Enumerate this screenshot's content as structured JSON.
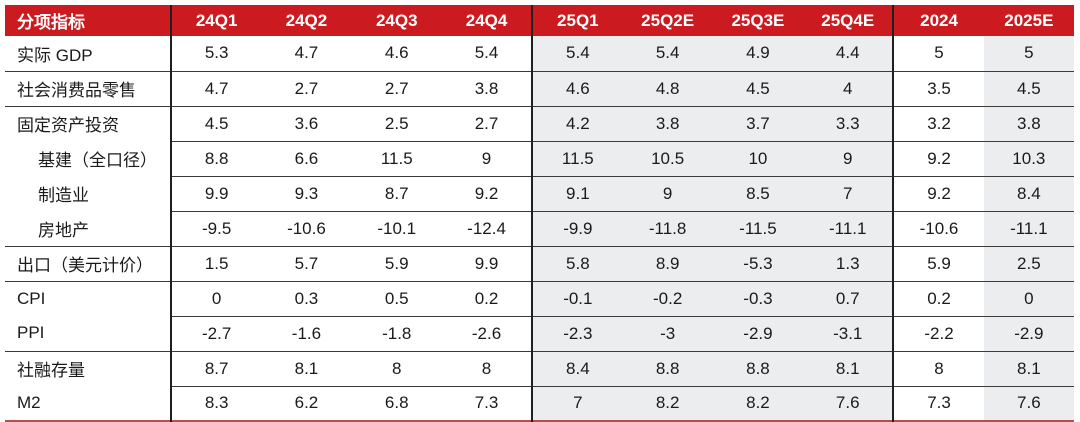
{
  "colors": {
    "header_red": "#CB1B20",
    "header_text": "#FFFFFF",
    "shaded_column_bg": "#ECEDEE",
    "row_line": "#3A3A3A",
    "section_line": "#1F1F1F",
    "bottom_rule_red": "#BF4A4A",
    "text": "#1A1A1A"
  },
  "table": {
    "header": {
      "label": "分项指标",
      "columns": [
        "24Q1",
        "24Q2",
        "24Q3",
        "24Q4",
        "25Q1",
        "25Q2E",
        "25Q3E",
        "25Q4E",
        "2024",
        "2025E"
      ]
    },
    "rows": [
      {
        "label": "实际 GDP",
        "indent": false,
        "section_end": true,
        "values": [
          "5.3",
          "4.7",
          "4.6",
          "5.4",
          "5.4",
          "5.4",
          "4.9",
          "4.4",
          "5",
          "5"
        ]
      },
      {
        "label": "社会消费品零售",
        "indent": false,
        "section_end": true,
        "values": [
          "4.7",
          "2.7",
          "2.7",
          "3.8",
          "4.6",
          "4.8",
          "4.5",
          "4",
          "3.5",
          "4.5"
        ]
      },
      {
        "label": "固定资产投资",
        "indent": false,
        "section_end": false,
        "values": [
          "4.5",
          "3.6",
          "2.5",
          "2.7",
          "4.2",
          "3.8",
          "3.7",
          "3.3",
          "3.2",
          "3.8"
        ]
      },
      {
        "label": "基建（全口径）",
        "indent": true,
        "section_end": false,
        "values": [
          "8.8",
          "6.6",
          "11.5",
          "9",
          "11.5",
          "10.5",
          "10",
          "9",
          "9.2",
          "10.3"
        ]
      },
      {
        "label": "制造业",
        "indent": true,
        "section_end": false,
        "values": [
          "9.9",
          "9.3",
          "8.7",
          "9.2",
          "9.1",
          "9",
          "8.5",
          "7",
          "9.2",
          "8.4"
        ]
      },
      {
        "label": "房地产",
        "indent": true,
        "section_end": true,
        "values": [
          "-9.5",
          "-10.6",
          "-10.1",
          "-12.4",
          "-9.9",
          "-11.8",
          "-11.5",
          "-11.1",
          "-10.6",
          "-11.1"
        ]
      },
      {
        "label": "出口（美元计价）",
        "indent": false,
        "section_end": true,
        "values": [
          "1.5",
          "5.7",
          "5.9",
          "9.9",
          "5.8",
          "8.9",
          "-5.3",
          "1.3",
          "5.9",
          "2.5"
        ]
      },
      {
        "label": "CPI",
        "indent": false,
        "section_end": false,
        "values": [
          "0",
          "0.3",
          "0.5",
          "0.2",
          "-0.1",
          "-0.2",
          "-0.3",
          "0.7",
          "0.2",
          "0"
        ]
      },
      {
        "label": "PPI",
        "indent": false,
        "section_end": true,
        "values": [
          "-2.7",
          "-1.6",
          "-1.8",
          "-2.6",
          "-2.3",
          "-3",
          "-2.9",
          "-3.1",
          "-2.2",
          "-2.9"
        ]
      },
      {
        "label": "社融存量",
        "indent": false,
        "section_end": false,
        "values": [
          "8.7",
          "8.1",
          "8",
          "8",
          "8.4",
          "8.8",
          "8.8",
          "8.1",
          "8",
          "8.1"
        ]
      },
      {
        "label": "M2",
        "indent": false,
        "section_end": false,
        "values": [
          "8.3",
          "6.2",
          "6.8",
          "7.3",
          "7",
          "8.2",
          "8.2",
          "7.6",
          "7.3",
          "7.6"
        ]
      }
    ]
  },
  "chart_data": {
    "type": "table",
    "title": "分项指标",
    "columns": [
      "分项指标",
      "24Q1",
      "24Q2",
      "24Q3",
      "24Q4",
      "25Q1",
      "25Q2E",
      "25Q3E",
      "25Q4E",
      "2024",
      "2025E"
    ],
    "forecast_columns": [
      "25Q1",
      "25Q2E",
      "25Q3E",
      "25Q4E",
      "2025E"
    ],
    "series": [
      {
        "name": "实际 GDP",
        "values": [
          5.3,
          4.7,
          4.6,
          5.4,
          5.4,
          5.4,
          4.9,
          4.4,
          5,
          5
        ]
      },
      {
        "name": "社会消费品零售",
        "values": [
          4.7,
          2.7,
          2.7,
          3.8,
          4.6,
          4.8,
          4.5,
          4,
          3.5,
          4.5
        ]
      },
      {
        "name": "固定资产投资",
        "values": [
          4.5,
          3.6,
          2.5,
          2.7,
          4.2,
          3.8,
          3.7,
          3.3,
          3.2,
          3.8
        ]
      },
      {
        "name": "基建（全口径）",
        "values": [
          8.8,
          6.6,
          11.5,
          9,
          11.5,
          10.5,
          10,
          9,
          9.2,
          10.3
        ]
      },
      {
        "name": "制造业",
        "values": [
          9.9,
          9.3,
          8.7,
          9.2,
          9.1,
          9,
          8.5,
          7,
          9.2,
          8.4
        ]
      },
      {
        "name": "房地产",
        "values": [
          -9.5,
          -10.6,
          -10.1,
          -12.4,
          -9.9,
          -11.8,
          -11.5,
          -11.1,
          -10.6,
          -11.1
        ]
      },
      {
        "name": "出口（美元计价）",
        "values": [
          1.5,
          5.7,
          5.9,
          9.9,
          5.8,
          8.9,
          -5.3,
          1.3,
          5.9,
          2.5
        ]
      },
      {
        "name": "CPI",
        "values": [
          0,
          0.3,
          0.5,
          0.2,
          -0.1,
          -0.2,
          -0.3,
          0.7,
          0.2,
          0
        ]
      },
      {
        "name": "PPI",
        "values": [
          -2.7,
          -1.6,
          -1.8,
          -2.6,
          -2.3,
          -3,
          -2.9,
          -3.1,
          -2.2,
          -2.9
        ]
      },
      {
        "name": "社融存量",
        "values": [
          8.7,
          8.1,
          8,
          8,
          8.4,
          8.8,
          8.8,
          8.1,
          8,
          8.1
        ]
      },
      {
        "name": "M2",
        "values": [
          8.3,
          6.2,
          6.8,
          7.3,
          7,
          8.2,
          8.2,
          7.6,
          7.3,
          7.6
        ]
      }
    ]
  }
}
